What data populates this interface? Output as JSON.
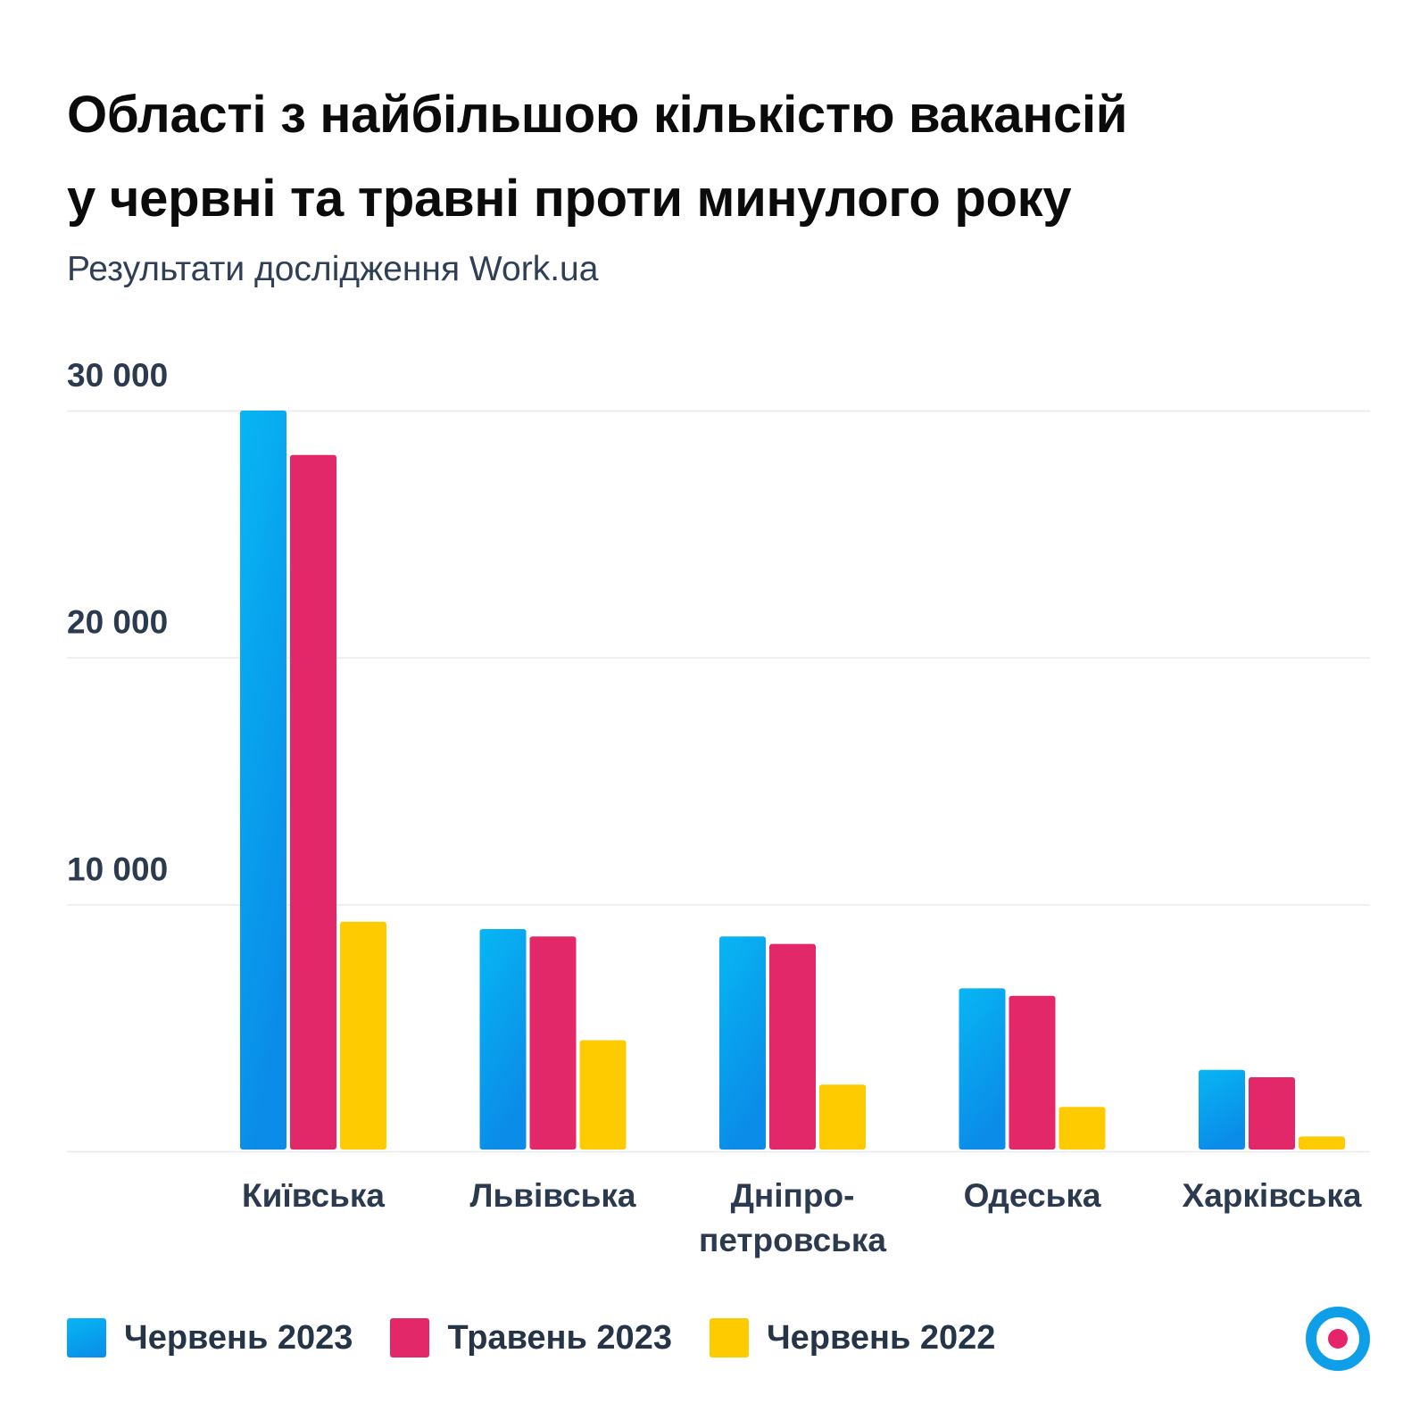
{
  "title_line1": "Області з найбільшою кількістю вакансій",
  "title_line2": "у червні та травні проти минулого року",
  "subtitle": "Результати дослідження Work.ua",
  "colors": {
    "series_blue_top": "#07b6f3",
    "series_blue_bottom": "#0a8ce8",
    "series_pink": "#e3286a",
    "series_yellow": "#fdcb00",
    "grid": "#e6e9ee",
    "axis_text": "#2b3a4f"
  },
  "logo_icon": "target-circle-icon",
  "chart_data": {
    "type": "bar",
    "categories": [
      [
        "Київська"
      ],
      [
        "Львівська"
      ],
      [
        "Дніпро-",
        "петровська"
      ],
      [
        "Одеська"
      ],
      [
        "Харківська"
      ]
    ],
    "series": [
      {
        "name": "Червень 2023",
        "values": [
          30000,
          9000,
          8700,
          6600,
          3300
        ]
      },
      {
        "name": "Травень 2023",
        "values": [
          28200,
          8700,
          8400,
          6300,
          3000
        ]
      },
      {
        "name": "Червень 2022",
        "values": [
          9300,
          4500,
          2700,
          1800,
          600
        ]
      }
    ],
    "yticks": [
      10000,
      20000,
      30000
    ],
    "ytick_labels": [
      "10 000",
      "20 000",
      "30 000"
    ],
    "ylim": [
      0,
      30000
    ],
    "grid": true,
    "legend_position": "bottom-left"
  }
}
